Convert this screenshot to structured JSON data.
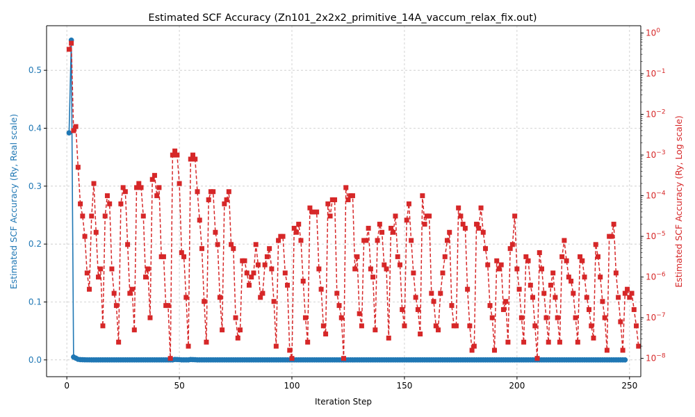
{
  "chart_data": {
    "type": "line",
    "title": "Estimated SCF Accuracy (Zn101_2x2x2_primitive_14A_vaccum_relax_fix.out)",
    "xlabel": "Iteration Step",
    "ylabel_left": "Estimated SCF Accuracy (Ry, Real scale)",
    "ylabel_right": "Estimated SCF Accuracy (Ry, Log scale)",
    "xlim": [
      -9,
      255
    ],
    "ylim_left": [
      -0.029,
      0.577
    ],
    "ylim_right_log10": [
      -8.45,
      0.18
    ],
    "x_ticks": [
      0,
      50,
      100,
      150,
      200,
      250
    ],
    "y_ticks_left": [
      0.0,
      0.1,
      0.2,
      0.3,
      0.4,
      0.5
    ],
    "y_ticks_right": [
      "10^-8",
      "10^-7",
      "10^-6",
      "10^-5",
      "10^-4",
      "10^-3",
      "10^-2",
      "10^-1",
      "10^0"
    ],
    "grid": true,
    "colors": {
      "left": "#1f77b4",
      "right": "#d62728"
    },
    "series": [
      {
        "axis": "left",
        "scale": "linear",
        "style": "solid line, circle markers",
        "x_start": 1,
        "values": [
          0.392,
          0.552,
          0.005,
          0.003,
          0.001,
          0.0005,
          0.0003,
          0.0002,
          0.0001,
          0.0001,
          0,
          0,
          0,
          0,
          0,
          0,
          0,
          0,
          0,
          0,
          0,
          0,
          0,
          0,
          0,
          0,
          0,
          0,
          0,
          0,
          0,
          0,
          0,
          0,
          0,
          0,
          0,
          0,
          0,
          0,
          0,
          0,
          0,
          0,
          0,
          0,
          0,
          0.0008,
          0.0006,
          0.0004,
          0,
          0,
          0,
          0,
          0.0006,
          0.0005,
          0.0003,
          0,
          0,
          0,
          0,
          0,
          0,
          0,
          0,
          0,
          0,
          0,
          0,
          0,
          0,
          0,
          0,
          0,
          0,
          0,
          0,
          0,
          0,
          0,
          0,
          0,
          0,
          0,
          0,
          0,
          0,
          0,
          0,
          0,
          0,
          0,
          0,
          0,
          0,
          0,
          0,
          0,
          0,
          0,
          0,
          0,
          0,
          0,
          0,
          0,
          0,
          0,
          0,
          0,
          0,
          0,
          0,
          0,
          0,
          0,
          0,
          0,
          0,
          0,
          0,
          0,
          0,
          0,
          0,
          0,
          0,
          0,
          0,
          0,
          0,
          0,
          0,
          0,
          0,
          0,
          0,
          0,
          0,
          0,
          0,
          0,
          0,
          0,
          0,
          0,
          0,
          0,
          0,
          0,
          0,
          0,
          0,
          0,
          0,
          0,
          0,
          0,
          0,
          0,
          0,
          0,
          0,
          0,
          0,
          0,
          0,
          0,
          0,
          0,
          0,
          0,
          0,
          0,
          0,
          0,
          0,
          0,
          0,
          0,
          0,
          0,
          0,
          0,
          0,
          0,
          0,
          0,
          0,
          0,
          0,
          0,
          0,
          0,
          0,
          0,
          0,
          0,
          0,
          0,
          0,
          0,
          0,
          0,
          0,
          0,
          0,
          0,
          0,
          0,
          0,
          0,
          0,
          0,
          0,
          0,
          0,
          0,
          0,
          0,
          0,
          0,
          0,
          0,
          0,
          0,
          0,
          0,
          0,
          0,
          0,
          0,
          0,
          0,
          0,
          0,
          0,
          0,
          0,
          0,
          0,
          0,
          0,
          0,
          0,
          0,
          0,
          0
        ]
      },
      {
        "axis": "right",
        "scale": "log",
        "style": "dashed line, square markers",
        "x_start": 1,
        "log10_values": [
          -0.4,
          -0.25,
          -2.4,
          -2.3,
          -3.3,
          -4.2,
          -4.5,
          -5.0,
          -5.9,
          -6.3,
          -4.5,
          -3.7,
          -4.9,
          -6.0,
          -5.8,
          -7.2,
          -4.5,
          -4.0,
          -4.2,
          -5.8,
          -6.4,
          -6.7,
          -7.6,
          -4.2,
          -3.8,
          -3.9,
          -5.2,
          -6.4,
          -6.3,
          -7.3,
          -3.8,
          -3.7,
          -3.8,
          -4.5,
          -6.0,
          -5.8,
          -7.0,
          -3.6,
          -3.5,
          -4.0,
          -3.8,
          -5.5,
          -5.5,
          -6.7,
          -6.7,
          -8.0,
          -3.0,
          -2.9,
          -3.0,
          -3.7,
          -5.4,
          -5.5,
          -6.5,
          -7.7,
          -3.1,
          -3.0,
          -3.1,
          -3.9,
          -4.6,
          -5.3,
          -6.6,
          -7.6,
          -4.1,
          -3.9,
          -3.9,
          -4.9,
          -5.2,
          -6.5,
          -7.3,
          -4.2,
          -4.1,
          -3.9,
          -5.2,
          -5.3,
          -7.0,
          -7.5,
          -7.3,
          -5.6,
          -5.6,
          -5.9,
          -6.2,
          -6.0,
          -5.9,
          -5.2,
          -5.7,
          -6.5,
          -6.4,
          -5.7,
          -5.5,
          -5.3,
          -5.8,
          -6.6,
          -7.7,
          -5.1,
          -5.0,
          -5.0,
          -5.9,
          -6.2,
          -7.8,
          -8.0,
          -4.8,
          -4.9,
          -4.7,
          -5.1,
          -6.1,
          -7.0,
          -7.6,
          -4.3,
          -4.4,
          -4.4,
          -4.4,
          -5.8,
          -6.3,
          -7.2,
          -7.4,
          -4.2,
          -4.5,
          -4.1,
          -4.1,
          -6.4,
          -6.7,
          -7.0,
          -8.0,
          -3.8,
          -4.1,
          -4.0,
          -4.0,
          -5.8,
          -5.5,
          -6.9,
          -7.2,
          -5.1,
          -5.1,
          -4.8,
          -5.8,
          -6.0,
          -7.3,
          -5.1,
          -4.7,
          -4.9,
          -5.7,
          -5.8,
          -7.5,
          -4.8,
          -4.9,
          -4.5,
          -5.5,
          -5.7,
          -6.8,
          -7.2,
          -4.6,
          -4.2,
          -5.1,
          -5.9,
          -6.5,
          -6.8,
          -7.4,
          -4.0,
          -4.7,
          -4.5,
          -4.5,
          -6.4,
          -6.6,
          -7.2,
          -7.3,
          -6.4,
          -5.9,
          -5.5,
          -5.1,
          -4.9,
          -6.7,
          -7.2,
          -7.2,
          -4.3,
          -4.5,
          -4.7,
          -4.8,
          -6.3,
          -7.2,
          -7.8,
          -7.7,
          -4.7,
          -4.8,
          -4.3,
          -4.9,
          -5.3,
          -5.7,
          -6.7,
          -7.0,
          -7.8,
          -5.6,
          -5.8,
          -5.7,
          -6.8,
          -6.6,
          -7.6,
          -5.3,
          -5.2,
          -4.5,
          -5.8,
          -6.3,
          -7.0,
          -7.6,
          -5.5,
          -5.6,
          -6.2,
          -6.5,
          -7.2,
          -8.0,
          -5.4,
          -5.8,
          -6.4,
          -7.0,
          -7.6,
          -6.2,
          -5.9,
          -6.5,
          -7.0,
          -7.6,
          -5.5,
          -5.1,
          -5.6,
          -6.0,
          -6.1,
          -6.4,
          -7.0,
          -7.6,
          -5.5,
          -5.6,
          -6.0,
          -6.5,
          -6.8,
          -7.2,
          -7.5,
          -5.2,
          -5.5,
          -6.0,
          -6.6,
          -7.0,
          -7.8,
          -5.0,
          -5.0,
          -4.7,
          -5.9,
          -6.5,
          -7.1,
          -7.8,
          -6.4,
          -6.3,
          -6.5,
          -6.4,
          -6.8,
          -7.2,
          -7.7
        ]
      }
    ]
  }
}
